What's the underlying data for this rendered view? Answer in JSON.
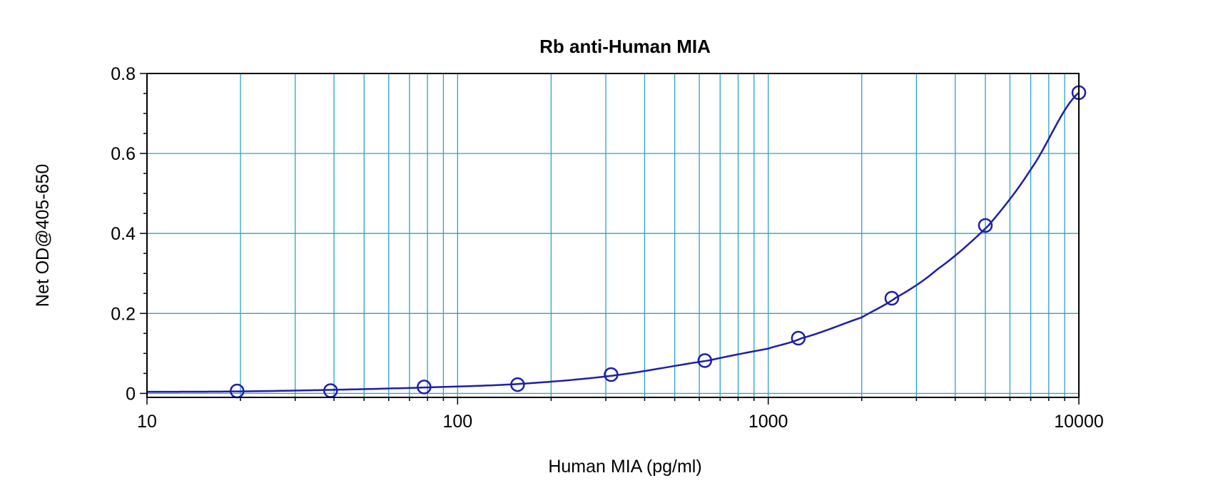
{
  "chart_data": {
    "type": "scatter",
    "title": "Rb anti-Human MIA",
    "xlabel": "Human MIA (pg/ml)",
    "ylabel": "Net OD@405-650",
    "x_scale": "log",
    "xlim": [
      10,
      10000
    ],
    "ylim": [
      -0.01,
      0.8
    ],
    "x_ticks": [
      10,
      100,
      1000,
      10000
    ],
    "x_tick_labels": [
      "10",
      "100",
      "1000",
      "10000"
    ],
    "y_ticks": [
      0,
      0.2,
      0.4,
      0.6,
      0.8
    ],
    "y_tick_labels": [
      "0",
      "0.2",
      "0.4",
      "0.6",
      "0.8"
    ],
    "grid": true,
    "legend": "none",
    "colors": {
      "series": "#1e1ea8",
      "grid": "#2aa2c8",
      "frame": "#000000"
    },
    "series": [
      {
        "x": [
          19.5,
          39,
          78,
          156,
          312,
          625,
          1250,
          2500,
          5000,
          10000
        ],
        "y": [
          0.006,
          0.007,
          0.016,
          0.022,
          0.047,
          0.082,
          0.138,
          0.238,
          0.42,
          0.752
        ]
      }
    ],
    "fit_curve": {
      "x": [
        10,
        20,
        40,
        80,
        160,
        320,
        640,
        1000,
        1280,
        2000,
        2560,
        3500,
        5120,
        7000,
        10000
      ],
      "y": [
        0.004,
        0.005,
        0.009,
        0.015,
        0.024,
        0.045,
        0.082,
        0.112,
        0.138,
        0.19,
        0.238,
        0.31,
        0.42,
        0.56,
        0.752
      ]
    }
  }
}
